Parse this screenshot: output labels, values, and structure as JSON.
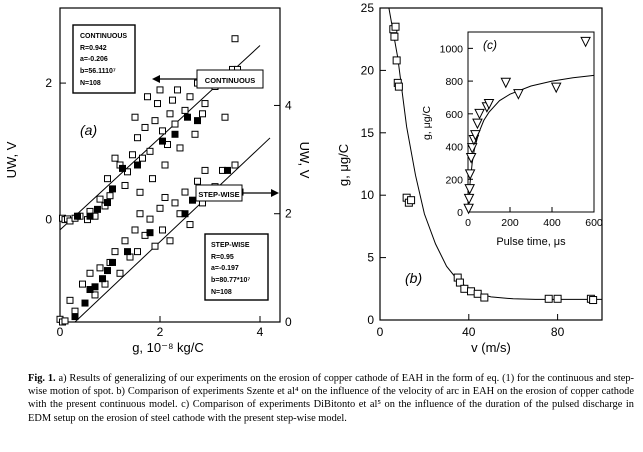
{
  "chart_data": [
    {
      "id": "a",
      "type": "scatter",
      "panel_label": "(a)",
      "xlabel": "g, 10⁻⁸ kg/C",
      "ylabel_left": "UW, V",
      "ylabel_right": "UW, V",
      "xlim": [
        0,
        4.4
      ],
      "ylim_left": [
        -1.5,
        3.1
      ],
      "ylim_right": [
        0,
        5.8
      ],
      "xticks": [
        0,
        2,
        4
      ],
      "yticks_left": [
        0,
        2
      ],
      "yticks_right": [
        0,
        2,
        4
      ],
      "series": [
        {
          "axis": "left",
          "open_points": [
            [
              0.05,
              0.02
            ],
            [
              0.1,
              0
            ],
            [
              0.15,
              0.01
            ],
            [
              0.2,
              -0.02
            ],
            [
              0.3,
              0.02
            ],
            [
              0.4,
              0.05
            ],
            [
              0.55,
              0
            ],
            [
              0.6,
              0.12
            ],
            [
              0.7,
              0.05
            ],
            [
              0.8,
              0.3
            ],
            [
              0.9,
              0.2
            ],
            [
              1.0,
              0.35
            ],
            [
              0.95,
              0.6
            ],
            [
              1.1,
              0.9
            ],
            [
              1.2,
              0.8
            ],
            [
              1.3,
              0.5
            ],
            [
              1.35,
              0.7
            ],
            [
              1.45,
              0.95
            ],
            [
              1.5,
              1.5
            ],
            [
              1.55,
              1.2
            ],
            [
              1.6,
              0.4
            ],
            [
              1.65,
              0.9
            ],
            [
              1.7,
              1.35
            ],
            [
              1.75,
              1.8
            ],
            [
              1.8,
              1.0
            ],
            [
              1.85,
              0.6
            ],
            [
              1.9,
              1.45
            ],
            [
              1.95,
              1.7
            ],
            [
              2.0,
              1.9
            ],
            [
              2.05,
              1.3
            ],
            [
              2.1,
              0.8
            ],
            [
              2.15,
              1.1
            ],
            [
              2.2,
              1.55
            ],
            [
              2.25,
              1.75
            ],
            [
              2.3,
              1.4
            ],
            [
              2.35,
              1.9
            ],
            [
              2.4,
              1.05
            ],
            [
              2.5,
              1.6
            ],
            [
              2.6,
              1.8
            ],
            [
              2.7,
              1.25
            ],
            [
              2.75,
              2.0
            ],
            [
              2.85,
              1.55
            ],
            [
              2.9,
              1.7
            ],
            [
              3.1,
              1.95
            ],
            [
              3.3,
              1.5
            ],
            [
              3.45,
              2.2
            ],
            [
              3.5,
              2.65
            ],
            [
              3.55,
              2.2
            ]
          ],
          "filled_points": [
            [
              0.35,
              0.05
            ],
            [
              0.6,
              0.05
            ],
            [
              0.75,
              0.15
            ],
            [
              0.95,
              0.25
            ],
            [
              1.05,
              0.45
            ],
            [
              1.25,
              0.75
            ],
            [
              1.55,
              0.8
            ],
            [
              2.05,
              1.15
            ],
            [
              2.3,
              1.25
            ],
            [
              2.55,
              1.5
            ],
            [
              2.75,
              1.45
            ],
            [
              3.3,
              2.1
            ]
          ],
          "fit_line": [
            [
              0,
              -0.15
            ],
            [
              4.0,
              2.55
            ]
          ]
        },
        {
          "axis": "right",
          "open_points": [
            [
              0.0,
              0.05
            ],
            [
              0.05,
              0
            ],
            [
              0.1,
              0.02
            ],
            [
              0.2,
              0.4
            ],
            [
              0.3,
              0.2
            ],
            [
              0.45,
              0.7
            ],
            [
              0.6,
              0.9
            ],
            [
              0.7,
              0.5
            ],
            [
              0.8,
              1.0
            ],
            [
              0.9,
              0.7
            ],
            [
              1.0,
              1.1
            ],
            [
              1.1,
              1.3
            ],
            [
              1.2,
              0.9
            ],
            [
              1.3,
              1.5
            ],
            [
              1.4,
              1.2
            ],
            [
              1.5,
              1.7
            ],
            [
              1.55,
              1.3
            ],
            [
              1.6,
              2.0
            ],
            [
              1.7,
              1.6
            ],
            [
              1.8,
              1.9
            ],
            [
              1.9,
              1.4
            ],
            [
              2.0,
              2.1
            ],
            [
              2.05,
              1.7
            ],
            [
              2.1,
              2.3
            ],
            [
              2.2,
              1.5
            ],
            [
              2.3,
              2.2
            ],
            [
              2.4,
              2.0
            ],
            [
              2.5,
              2.4
            ],
            [
              2.6,
              1.8
            ],
            [
              2.75,
              2.6
            ],
            [
              2.85,
              2.2
            ],
            [
              2.9,
              2.8
            ],
            [
              3.1,
              2.5
            ],
            [
              3.25,
              2.8
            ],
            [
              3.5,
              2.9
            ],
            [
              3.6,
              2.4
            ]
          ],
          "filled_points": [
            [
              0.3,
              0.1
            ],
            [
              0.5,
              0.35
            ],
            [
              0.6,
              0.6
            ],
            [
              0.7,
              0.65
            ],
            [
              0.85,
              0.8
            ],
            [
              0.95,
              0.95
            ],
            [
              1.05,
              1.1
            ],
            [
              1.35,
              1.3
            ],
            [
              1.8,
              1.65
            ],
            [
              2.5,
              2.0
            ],
            [
              2.65,
              2.25
            ],
            [
              3.35,
              2.8
            ]
          ],
          "fit_line": [
            [
              0.3,
              0
            ],
            [
              4.2,
              3.4
            ]
          ]
        }
      ],
      "annotations": [
        {
          "label": "CONTINUOUS",
          "points_to": "left-axis series"
        },
        {
          "label": "STEP-WISE",
          "points_to": "right-axis series"
        }
      ],
      "fit_boxes": [
        {
          "title": "CONTINUOUS",
          "lines": [
            "R=0.942",
            "a=-0.206",
            "b=56.1110⁷",
            "N=108"
          ]
        },
        {
          "title": "STEP-WISE",
          "lines": [
            "R=0.95",
            "a=-0.197",
            "b=80.77*10⁷",
            "N=108"
          ]
        }
      ]
    },
    {
      "id": "b",
      "type": "scatter",
      "panel_label": "(b)",
      "xlabel": "v (m/s)",
      "ylabel": "g, μg/C",
      "xlim": [
        0,
        100
      ],
      "ylim": [
        0,
        25
      ],
      "xticks": [
        0,
        40,
        80
      ],
      "yticks": [
        0,
        5,
        10,
        15,
        20,
        25
      ],
      "points": [
        [
          6,
          23.3
        ],
        [
          6.5,
          22.7
        ],
        [
          7,
          23.5
        ],
        [
          7.5,
          20.8
        ],
        [
          8,
          19.0
        ],
        [
          8.5,
          18.7
        ],
        [
          12,
          9.8
        ],
        [
          13,
          9.4
        ],
        [
          14,
          9.6
        ],
        [
          35,
          3.4
        ],
        [
          36,
          3.0
        ],
        [
          38,
          2.5
        ],
        [
          41,
          2.3
        ],
        [
          44,
          2.1
        ],
        [
          47,
          1.8
        ],
        [
          76,
          1.7
        ],
        [
          80,
          1.7
        ],
        [
          95,
          1.7
        ],
        [
          96,
          1.6
        ]
      ],
      "fit_curve": [
        [
          4,
          26
        ],
        [
          8,
          21
        ],
        [
          12,
          15.5
        ],
        [
          16,
          11.6
        ],
        [
          20,
          8.5
        ],
        [
          25,
          6.1
        ],
        [
          30,
          4.3
        ],
        [
          35,
          3.2
        ],
        [
          40,
          2.5
        ],
        [
          45,
          2.1
        ],
        [
          50,
          1.85
        ],
        [
          60,
          1.7
        ],
        [
          70,
          1.65
        ],
        [
          80,
          1.65
        ],
        [
          90,
          1.65
        ],
        [
          100,
          1.65
        ]
      ]
    },
    {
      "id": "c",
      "type": "scatter",
      "panel_label": "(c)",
      "xlabel": "Pulse time, μs",
      "ylabel": "g, μg/C",
      "xlim": [
        0,
        600
      ],
      "ylim": [
        0,
        1100
      ],
      "xticks": [
        0,
        200,
        400,
        600
      ],
      "yticks": [
        0,
        200,
        400,
        600,
        800,
        1000
      ],
      "points": [
        [
          3,
          20
        ],
        [
          5,
          80
        ],
        [
          8,
          140
        ],
        [
          10,
          230
        ],
        [
          15,
          330
        ],
        [
          20,
          390
        ],
        [
          28,
          440
        ],
        [
          35,
          470
        ],
        [
          45,
          540
        ],
        [
          55,
          600
        ],
        [
          90,
          640
        ],
        [
          100,
          660
        ],
        [
          180,
          790
        ],
        [
          240,
          720
        ],
        [
          420,
          760
        ],
        [
          560,
          1040
        ]
      ],
      "fit_curve": [
        [
          0,
          0
        ],
        [
          5,
          100
        ],
        [
          10,
          180
        ],
        [
          20,
          300
        ],
        [
          30,
          380
        ],
        [
          50,
          480
        ],
        [
          75,
          560
        ],
        [
          100,
          610
        ],
        [
          150,
          680
        ],
        [
          200,
          720
        ],
        [
          300,
          770
        ],
        [
          400,
          800
        ],
        [
          500,
          820
        ],
        [
          600,
          835
        ]
      ]
    }
  ],
  "caption": {
    "label": "Fig. 1.",
    "text": "a) Results of generalizing of our experiments on the erosion of copper cathode of EAH in the form of eq. (1) for the continuous and step-wise motion of spot. b) Comparison of experiments Szente et al⁴ on the influence of the velocity of arc in EAH on the erosion of copper cathode with the present continuous model. c) Comparison of experiments DiBitonto et al⁵ on the influence of the duration of the pulsed discharge in EDM setup on the erosion of steel cathode with the present step-wise model."
  }
}
